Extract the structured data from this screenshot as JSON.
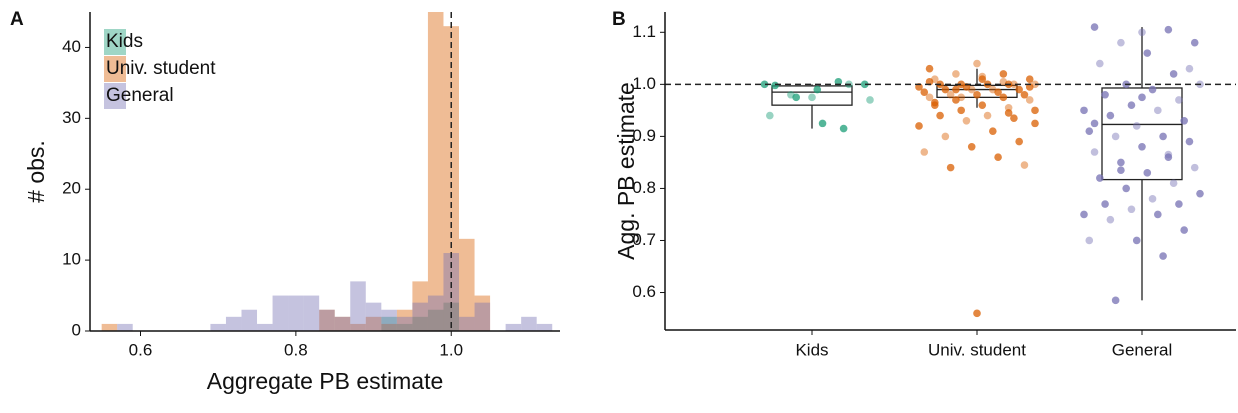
{
  "chart_data": [
    {
      "type": "histogram",
      "panel": "A",
      "xlabel": "Aggregate PB estimate",
      "ylabel": "# obs.",
      "bins": [
        0.55,
        0.57,
        0.59,
        0.61,
        0.63,
        0.65,
        0.67,
        0.69,
        0.71,
        0.73,
        0.75,
        0.77,
        0.79,
        0.81,
        0.83,
        0.85,
        0.87,
        0.89,
        0.91,
        0.93,
        0.95,
        0.97,
        0.99,
        1.01,
        1.03,
        1.05,
        1.07,
        1.09,
        1.11,
        1.13
      ],
      "series": [
        {
          "name": "Kids",
          "color": "#1b9e77",
          "values": [
            0,
            0,
            0,
            0,
            0,
            0,
            0,
            0,
            0,
            0,
            0,
            0,
            0,
            0,
            0,
            0,
            0,
            0,
            2,
            1,
            2,
            3,
            4,
            0,
            0,
            0,
            0,
            0,
            0
          ]
        },
        {
          "name": "Univ. student",
          "color": "#d95f02",
          "values": [
            1,
            0,
            0,
            0,
            0,
            0,
            0,
            0,
            0,
            0,
            0,
            0,
            0,
            0,
            3,
            2,
            1,
            2,
            1,
            3,
            7,
            45,
            43,
            13,
            5,
            0,
            0,
            0,
            0
          ]
        },
        {
          "name": "General",
          "color": "#7570b3",
          "values": [
            0,
            1,
            0,
            0,
            0,
            0,
            0,
            1,
            2,
            3,
            1,
            5,
            5,
            5,
            3,
            2,
            7,
            4,
            3,
            2,
            4,
            5,
            11,
            2,
            4,
            0,
            1,
            2,
            1
          ]
        }
      ],
      "xlim": [
        0.535,
        1.14
      ],
      "xticks": [
        0.6,
        0.8,
        {
          "value": 1.0,
          "label": "1.0"
        }
      ],
      "ylim": [
        0,
        45
      ],
      "yticks": [
        0,
        10,
        20,
        30,
        40
      ],
      "refline": 1.0,
      "legend": "upper left"
    },
    {
      "type": "box",
      "panel": "B",
      "ylabel": "Agg. PB estimate",
      "categories": [
        "Kids",
        "Univ. student",
        "General"
      ],
      "colors": [
        "#1b9e77",
        "#d95f02",
        "#7570b3"
      ],
      "whisker_low": [
        0.915,
        0.955,
        0.585
      ],
      "q1": [
        0.96,
        0.975,
        0.817
      ],
      "median": [
        0.985,
        0.99,
        0.923
      ],
      "q3": [
        0.997,
        0.998,
        0.993
      ],
      "whisker_high": [
        1.0,
        1.03,
        1.11
      ],
      "points": [
        [
          0.975,
          1.0,
          1.005,
          0.98,
          1.0,
          0.99,
          0.94,
          0.915,
          0.975,
          0.97,
          0.925,
          0.998,
          1.0
        ],
        [
          1.04,
          1.03,
          1.02,
          1.02,
          1.01,
          1.01,
          1.01,
          1.0,
          1.0,
          1.0,
          1.0,
          1.0,
          1.0,
          0.995,
          0.995,
          0.99,
          0.99,
          0.99,
          0.99,
          0.985,
          0.985,
          0.98,
          0.98,
          0.98,
          0.975,
          0.975,
          0.97,
          0.97,
          0.96,
          0.96,
          0.955,
          0.95,
          0.95,
          0.94,
          0.94,
          0.935,
          0.93,
          0.92,
          0.91,
          0.9,
          0.89,
          0.88,
          0.87,
          0.86,
          0.84,
          0.845,
          0.56,
          1.005,
          1.005,
          0.99,
          0.995,
          1.015,
          0.965,
          0.945,
          0.975,
          0.925
        ],
        [
          1.1,
          1.11,
          1.105,
          1.08,
          1.08,
          1.06,
          1.04,
          1.02,
          1.0,
          1.0,
          0.99,
          0.98,
          0.97,
          0.96,
          0.95,
          0.95,
          0.94,
          0.93,
          0.92,
          0.91,
          0.9,
          0.9,
          0.89,
          0.88,
          0.87,
          0.86,
          0.85,
          0.84,
          0.83,
          0.82,
          0.81,
          0.8,
          0.79,
          0.78,
          0.77,
          0.77,
          0.76,
          0.75,
          0.75,
          0.74,
          0.72,
          0.7,
          0.7,
          0.67,
          0.585,
          1.03,
          0.975,
          0.925,
          0.865,
          0.835
        ]
      ],
      "ylim": [
        0.528,
        1.139
      ],
      "yticks": [
        0.6,
        0.7,
        0.8,
        0.9,
        {
          "value": 1.0,
          "label": "1.0"
        },
        1.1
      ],
      "refline": 1.0
    }
  ]
}
